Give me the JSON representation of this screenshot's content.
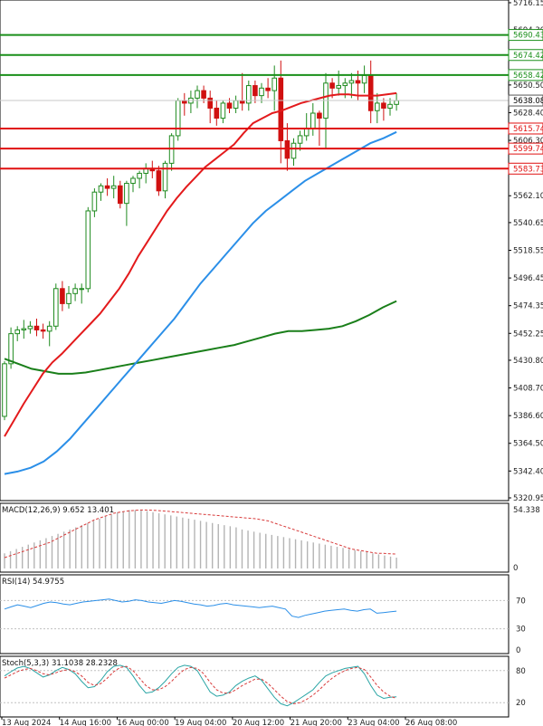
{
  "chart_data": {
    "type": "candlestick",
    "colors": {
      "up": "#1f8a1f",
      "down": "#d01010",
      "ema_fast": "#e31a1c",
      "ema_mid": "#2b8fe8",
      "ema_slow": "#1a7f1a",
      "macd_bar": "#b4b4b4",
      "macd_signal": "#d83a3a",
      "rsi": "#2b8fe8",
      "stoch_main": "#2aa5a5",
      "stoch_signal": "#d83a3a",
      "resistance": "#1a8f1a",
      "support": "#e01010"
    },
    "price_axis": {
      "ticks": [
        "5716.15",
        "5694.30",
        "5672.25",
        "5650.50",
        "5628.40",
        "5606.30",
        "5584.20",
        "5562.10",
        "5540.65",
        "5518.55",
        "5496.45",
        "5474.35",
        "5452.25",
        "5430.80",
        "5408.70",
        "5386.60",
        "5364.50",
        "5342.40",
        "5320.95"
      ]
    },
    "levels": [
      {
        "value": 5690.43,
        "label": "5690.43",
        "kind": "resistance"
      },
      {
        "value": 5674.42,
        "label": "5674.42",
        "kind": "resistance"
      },
      {
        "value": 5658.42,
        "label": "5658.42",
        "kind": "resistance"
      },
      {
        "value": 5615.74,
        "label": "5615.74",
        "kind": "support"
      },
      {
        "value": 5599.74,
        "label": "5599.74",
        "kind": "support"
      },
      {
        "value": 5583.73,
        "label": "5583.73",
        "kind": "support"
      }
    ],
    "current_price": {
      "value": 5638.08,
      "label": "5638.08"
    },
    "candles": [
      [
        5386,
        5430,
        5383,
        5428
      ],
      [
        5428,
        5457,
        5424,
        5452
      ],
      [
        5452,
        5458,
        5446,
        5455
      ],
      [
        5455,
        5463,
        5448,
        5456
      ],
      [
        5456,
        5462,
        5452,
        5458
      ],
      [
        5458,
        5464,
        5450,
        5455
      ],
      [
        5455,
        5460,
        5448,
        5454
      ],
      [
        5454,
        5462,
        5442,
        5458
      ],
      [
        5458,
        5492,
        5455,
        5488
      ],
      [
        5488,
        5494,
        5470,
        5476
      ],
      [
        5476,
        5490,
        5472,
        5484
      ],
      [
        5484,
        5492,
        5478,
        5488
      ],
      [
        5488,
        5492,
        5476,
        5488
      ],
      [
        5488,
        5553,
        5485,
        5550
      ],
      [
        5550,
        5568,
        5545,
        5565
      ],
      [
        5565,
        5572,
        5558,
        5570
      ],
      [
        5570,
        5576,
        5562,
        5568
      ],
      [
        5568,
        5578,
        5560,
        5570
      ],
      [
        5570,
        5574,
        5552,
        5556
      ],
      [
        5556,
        5574,
        5538,
        5572
      ],
      [
        5572,
        5578,
        5565,
        5576
      ],
      [
        5576,
        5582,
        5568,
        5580
      ],
      [
        5580,
        5588,
        5572,
        5584
      ],
      [
        5584,
        5590,
        5576,
        5582
      ],
      [
        5582,
        5586,
        5562,
        5566
      ],
      [
        5566,
        5590,
        5560,
        5588
      ],
      [
        5588,
        5612,
        5582,
        5610
      ],
      [
        5610,
        5640,
        5606,
        5638
      ],
      [
        5638,
        5644,
        5626,
        5636
      ],
      [
        5636,
        5646,
        5628,
        5640
      ],
      [
        5640,
        5650,
        5632,
        5646
      ],
      [
        5646,
        5650,
        5636,
        5640
      ],
      [
        5640,
        5646,
        5620,
        5632
      ],
      [
        5632,
        5638,
        5618,
        5624
      ],
      [
        5624,
        5638,
        5620,
        5636
      ],
      [
        5636,
        5640,
        5628,
        5632
      ],
      [
        5632,
        5642,
        5628,
        5638
      ],
      [
        5638,
        5660,
        5630,
        5636
      ],
      [
        5636,
        5654,
        5630,
        5650
      ],
      [
        5650,
        5654,
        5636,
        5642
      ],
      [
        5642,
        5652,
        5636,
        5648
      ],
      [
        5648,
        5656,
        5640,
        5646
      ],
      [
        5646,
        5666,
        5630,
        5656
      ],
      [
        5656,
        5670,
        5588,
        5606
      ],
      [
        5606,
        5620,
        5582,
        5592
      ],
      [
        5592,
        5608,
        5586,
        5604
      ],
      [
        5604,
        5614,
        5598,
        5610
      ],
      [
        5610,
        5628,
        5606,
        5616
      ],
      [
        5616,
        5636,
        5610,
        5628
      ],
      [
        5628,
        5630,
        5602,
        5624
      ],
      [
        5624,
        5660,
        5600,
        5652
      ],
      [
        5652,
        5656,
        5640,
        5648
      ],
      [
        5648,
        5662,
        5642,
        5650
      ],
      [
        5650,
        5656,
        5640,
        5652
      ],
      [
        5652,
        5660,
        5640,
        5654
      ],
      [
        5654,
        5662,
        5638,
        5652
      ],
      [
        5652,
        5666,
        5644,
        5658
      ],
      [
        5658,
        5670,
        5620,
        5630
      ],
      [
        5630,
        5644,
        5620,
        5636
      ],
      [
        5636,
        5640,
        5622,
        5632
      ],
      [
        5632,
        5640,
        5626,
        5635
      ],
      [
        5635,
        5644,
        5630,
        5638
      ]
    ],
    "ema_fast": [
      5370,
      5383,
      5396,
      5408,
      5420,
      5429,
      5436,
      5444,
      5452,
      5460,
      5468,
      5478,
      5488,
      5500,
      5514,
      5526,
      5538,
      5550,
      5560,
      5569,
      5577,
      5585,
      5591,
      5597,
      5603,
      5612,
      5620,
      5624,
      5628,
      5630,
      5633,
      5636,
      5638,
      5640,
      5642,
      5643,
      5643,
      5642,
      5642,
      5642,
      5643,
      5644
    ],
    "ema_mid": [
      5340,
      5342,
      5345,
      5350,
      5358,
      5368,
      5380,
      5392,
      5404,
      5416,
      5428,
      5440,
      5452,
      5464,
      5478,
      5492,
      5504,
      5516,
      5528,
      5540,
      5550,
      5558,
      5566,
      5574,
      5580,
      5586,
      5592,
      5598,
      5604,
      5608,
      5613
    ],
    "ema_slow": [
      5432,
      5428,
      5424,
      5422,
      5420,
      5420,
      5421,
      5423,
      5425,
      5427,
      5429,
      5431,
      5433,
      5435,
      5437,
      5439,
      5441,
      5443,
      5446,
      5449,
      5452,
      5454,
      5454,
      5455,
      5456,
      5458,
      5462,
      5467,
      5473,
      5478
    ],
    "macd": {
      "label": "MACD(12,26,9) 9.652 13.401",
      "scale_top": "54.338",
      "scale_bottom": "0",
      "hist": [
        14,
        16,
        18,
        20,
        22,
        24,
        26,
        28,
        30,
        32,
        34,
        36,
        38,
        40,
        42,
        44,
        46,
        48,
        50,
        52,
        53,
        54,
        54,
        54,
        53,
        52,
        51,
        50,
        49,
        48,
        47,
        46,
        45,
        44,
        43,
        42,
        41,
        40,
        39,
        38,
        36,
        35,
        34,
        33,
        32,
        31,
        30,
        29,
        28,
        27,
        26,
        25,
        24,
        23,
        22,
        21,
        20,
        19,
        18,
        17,
        16,
        15,
        14,
        13,
        12,
        11,
        10
      ],
      "signal": [
        10,
        12,
        14,
        16,
        18,
        20,
        22,
        24,
        27,
        30,
        33,
        36,
        39,
        42,
        45,
        47,
        49,
        51,
        52,
        53,
        53.5,
        54,
        54,
        53.8,
        53.4,
        53,
        52.5,
        52,
        51.5,
        51,
        50.5,
        50,
        49.5,
        49,
        48.5,
        48,
        47.5,
        47,
        46.5,
        46,
        45,
        44,
        42,
        40,
        38,
        36,
        34,
        32,
        30,
        28,
        26,
        24,
        22,
        20,
        18,
        17,
        16,
        15,
        14,
        14,
        13.6,
        13.4
      ]
    },
    "rsi": {
      "label": "RSI(14) 54.9755",
      "levels": [
        "70",
        "30",
        "0"
      ],
      "scale_top_value": 100,
      "values": [
        58,
        61,
        64,
        62,
        60,
        63,
        66,
        68,
        67,
        65,
        64,
        66,
        68,
        69,
        70,
        71,
        72,
        70,
        68,
        69,
        71,
        70,
        68,
        67,
        66,
        68,
        70,
        69,
        67,
        65,
        64,
        62,
        63,
        65,
        66,
        64,
        63,
        62,
        61,
        60,
        61,
        62,
        60,
        58,
        48,
        46,
        49,
        51,
        53,
        55,
        56,
        57,
        58,
        56,
        55,
        57,
        58,
        52,
        53,
        54,
        55
      ]
    },
    "stoch": {
      "label": "Stoch(5,3,3) 31.1038 28.2328",
      "levels": [
        "80",
        "20"
      ],
      "main": [
        70,
        78,
        85,
        88,
        84,
        76,
        68,
        72,
        80,
        86,
        82,
        74,
        60,
        48,
        50,
        62,
        78,
        88,
        90,
        86,
        70,
        52,
        38,
        40,
        48,
        60,
        74,
        86,
        90,
        88,
        80,
        60,
        40,
        32,
        34,
        40,
        52,
        60,
        66,
        70,
        62,
        46,
        30,
        18,
        14,
        20,
        28,
        36,
        44,
        58,
        70,
        76,
        80,
        84,
        86,
        88,
        74,
        52,
        34,
        28,
        30,
        31
      ],
      "signal": [
        66,
        72,
        78,
        82,
        84,
        80,
        74,
        72,
        76,
        80,
        82,
        78,
        70,
        58,
        52,
        56,
        66,
        78,
        86,
        88,
        80,
        66,
        52,
        44,
        44,
        50,
        60,
        72,
        82,
        86,
        84,
        74,
        58,
        44,
        38,
        38,
        44,
        52,
        58,
        64,
        64,
        56,
        44,
        32,
        22,
        18,
        20,
        26,
        34,
        44,
        56,
        66,
        74,
        80,
        84,
        86,
        82,
        68,
        52,
        40,
        32,
        28
      ]
    },
    "time_axis": [
      "13 Aug 2024",
      "14 Aug 16:00",
      "16 Aug 00:00",
      "19 Aug 04:00",
      "20 Aug 12:00",
      "21 Aug 20:00",
      "23 Aug 04:00",
      "26 Aug 08:00"
    ]
  }
}
